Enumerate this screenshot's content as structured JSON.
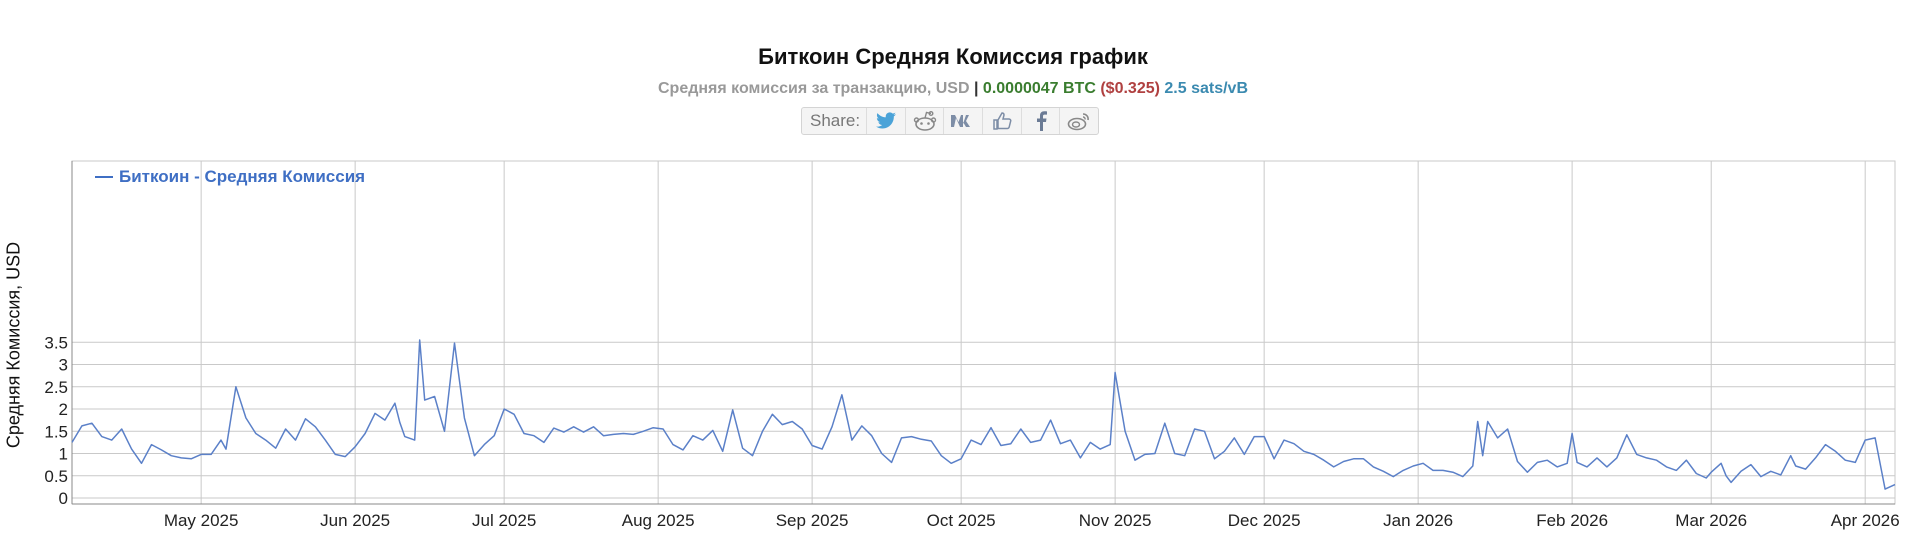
{
  "header": {
    "title": "Биткоин Средняя Комиссия график",
    "subtitle_prefix": "Средняя комиссия за транзакцию, USD",
    "subtitle_sep": "|",
    "btc_value": "0.0000047 BTC",
    "usd_value": "($0.325)",
    "sats_value": "2.5 sats/vB"
  },
  "share": {
    "label": "Share:",
    "icons": [
      "twitter-icon",
      "reddit-icon",
      "vk-icon",
      "like-icon",
      "facebook-icon",
      "weibo-icon"
    ]
  },
  "colors": {
    "line": "#5b80c8",
    "legend": "#3f6fc4",
    "grid": "#c9c9c9",
    "axis": "#888888"
  },
  "chart_data": {
    "type": "line",
    "ylabel": "Средняя Комиссия, USD",
    "ylim": [
      0,
      3.5
    ],
    "yticks": [
      "0",
      "0.5",
      "1",
      "1.5",
      "2",
      "2.5",
      "3",
      "3.5"
    ],
    "x_range": [
      "2025-04-05",
      "2026-04-07"
    ],
    "xticks": [
      {
        "label": "May 2025",
        "date": "2025-05-01"
      },
      {
        "label": "Jun 2025",
        "date": "2025-06-01"
      },
      {
        "label": "Jul 2025",
        "date": "2025-07-01"
      },
      {
        "label": "Aug 2025",
        "date": "2025-08-01"
      },
      {
        "label": "Sep 2025",
        "date": "2025-09-01"
      },
      {
        "label": "Oct 2025",
        "date": "2025-10-01"
      },
      {
        "label": "Nov 2025",
        "date": "2025-11-01"
      },
      {
        "label": "Dec 2025",
        "date": "2025-12-01"
      },
      {
        "label": "Jan 2026",
        "date": "2026-01-01"
      },
      {
        "label": "Feb 2026",
        "date": "2026-02-01"
      },
      {
        "label": "Mar 2026",
        "date": "2026-03-01"
      },
      {
        "label": "Apr 2026",
        "date": "2026-04-01"
      }
    ],
    "grid": true,
    "legend_position": "top-left",
    "series": [
      {
        "name": "Биткоин - Средняя Комиссия",
        "points": [
          [
            "2025-04-05",
            1.25
          ],
          [
            "2025-04-07",
            1.62
          ],
          [
            "2025-04-09",
            1.68
          ],
          [
            "2025-04-11",
            1.38
          ],
          [
            "2025-04-13",
            1.3
          ],
          [
            "2025-04-15",
            1.55
          ],
          [
            "2025-04-17",
            1.1
          ],
          [
            "2025-04-19",
            0.78
          ],
          [
            "2025-04-21",
            1.2
          ],
          [
            "2025-04-23",
            1.08
          ],
          [
            "2025-04-25",
            0.95
          ],
          [
            "2025-04-27",
            0.9
          ],
          [
            "2025-04-29",
            0.88
          ],
          [
            "2025-05-01",
            0.98
          ],
          [
            "2025-05-03",
            0.98
          ],
          [
            "2025-05-05",
            1.3
          ],
          [
            "2025-05-06",
            1.1
          ],
          [
            "2025-05-08",
            2.5
          ],
          [
            "2025-05-10",
            1.8
          ],
          [
            "2025-05-12",
            1.45
          ],
          [
            "2025-05-14",
            1.3
          ],
          [
            "2025-05-16",
            1.12
          ],
          [
            "2025-05-18",
            1.55
          ],
          [
            "2025-05-20",
            1.3
          ],
          [
            "2025-05-22",
            1.78
          ],
          [
            "2025-05-24",
            1.6
          ],
          [
            "2025-05-26",
            1.3
          ],
          [
            "2025-05-28",
            0.98
          ],
          [
            "2025-05-30",
            0.93
          ],
          [
            "2025-06-01",
            1.15
          ],
          [
            "2025-06-03",
            1.45
          ],
          [
            "2025-06-05",
            1.9
          ],
          [
            "2025-06-07",
            1.75
          ],
          [
            "2025-06-09",
            2.13
          ],
          [
            "2025-06-10",
            1.7
          ],
          [
            "2025-06-11",
            1.38
          ],
          [
            "2025-06-13",
            1.3
          ],
          [
            "2025-06-14",
            3.55
          ],
          [
            "2025-06-15",
            2.2
          ],
          [
            "2025-06-17",
            2.28
          ],
          [
            "2025-06-19",
            1.5
          ],
          [
            "2025-06-21",
            3.48
          ],
          [
            "2025-06-23",
            1.8
          ],
          [
            "2025-06-25",
            0.95
          ],
          [
            "2025-06-27",
            1.2
          ],
          [
            "2025-06-29",
            1.4
          ],
          [
            "2025-07-01",
            2.0
          ],
          [
            "2025-07-03",
            1.88
          ],
          [
            "2025-07-05",
            1.45
          ],
          [
            "2025-07-07",
            1.4
          ],
          [
            "2025-07-09",
            1.25
          ],
          [
            "2025-07-11",
            1.57
          ],
          [
            "2025-07-13",
            1.48
          ],
          [
            "2025-07-15",
            1.6
          ],
          [
            "2025-07-17",
            1.48
          ],
          [
            "2025-07-19",
            1.6
          ],
          [
            "2025-07-21",
            1.4
          ],
          [
            "2025-07-23",
            1.43
          ],
          [
            "2025-07-25",
            1.45
          ],
          [
            "2025-07-27",
            1.43
          ],
          [
            "2025-07-29",
            1.5
          ],
          [
            "2025-07-31",
            1.58
          ],
          [
            "2025-08-02",
            1.55
          ],
          [
            "2025-08-04",
            1.2
          ],
          [
            "2025-08-06",
            1.08
          ],
          [
            "2025-08-08",
            1.4
          ],
          [
            "2025-08-10",
            1.3
          ],
          [
            "2025-08-12",
            1.52
          ],
          [
            "2025-08-14",
            1.05
          ],
          [
            "2025-08-16",
            1.98
          ],
          [
            "2025-08-18",
            1.12
          ],
          [
            "2025-08-20",
            0.95
          ],
          [
            "2025-08-22",
            1.5
          ],
          [
            "2025-08-24",
            1.88
          ],
          [
            "2025-08-26",
            1.65
          ],
          [
            "2025-08-28",
            1.72
          ],
          [
            "2025-08-30",
            1.55
          ],
          [
            "2025-09-01",
            1.18
          ],
          [
            "2025-09-03",
            1.1
          ],
          [
            "2025-09-05",
            1.6
          ],
          [
            "2025-09-07",
            2.32
          ],
          [
            "2025-09-09",
            1.3
          ],
          [
            "2025-09-11",
            1.62
          ],
          [
            "2025-09-13",
            1.4
          ],
          [
            "2025-09-15",
            1.0
          ],
          [
            "2025-09-17",
            0.8
          ],
          [
            "2025-09-19",
            1.35
          ],
          [
            "2025-09-21",
            1.38
          ],
          [
            "2025-09-23",
            1.32
          ],
          [
            "2025-09-25",
            1.28
          ],
          [
            "2025-09-27",
            0.95
          ],
          [
            "2025-09-29",
            0.78
          ],
          [
            "2025-10-01",
            0.88
          ],
          [
            "2025-10-03",
            1.3
          ],
          [
            "2025-10-05",
            1.2
          ],
          [
            "2025-10-07",
            1.58
          ],
          [
            "2025-10-09",
            1.18
          ],
          [
            "2025-10-11",
            1.22
          ],
          [
            "2025-10-13",
            1.55
          ],
          [
            "2025-10-15",
            1.25
          ],
          [
            "2025-10-17",
            1.3
          ],
          [
            "2025-10-19",
            1.75
          ],
          [
            "2025-10-21",
            1.22
          ],
          [
            "2025-10-23",
            1.3
          ],
          [
            "2025-10-25",
            0.9
          ],
          [
            "2025-10-27",
            1.25
          ],
          [
            "2025-10-29",
            1.1
          ],
          [
            "2025-10-31",
            1.2
          ],
          [
            "2025-11-01",
            2.82
          ],
          [
            "2025-11-03",
            1.5
          ],
          [
            "2025-11-05",
            0.85
          ],
          [
            "2025-11-07",
            0.98
          ],
          [
            "2025-11-09",
            1.0
          ],
          [
            "2025-11-11",
            1.68
          ],
          [
            "2025-11-13",
            1.0
          ],
          [
            "2025-11-15",
            0.95
          ],
          [
            "2025-11-17",
            1.55
          ],
          [
            "2025-11-19",
            1.5
          ],
          [
            "2025-11-21",
            0.88
          ],
          [
            "2025-11-23",
            1.05
          ],
          [
            "2025-11-25",
            1.35
          ],
          [
            "2025-11-27",
            0.98
          ],
          [
            "2025-11-29",
            1.38
          ],
          [
            "2025-12-01",
            1.38
          ],
          [
            "2025-12-03",
            0.88
          ],
          [
            "2025-12-05",
            1.3
          ],
          [
            "2025-12-07",
            1.22
          ],
          [
            "2025-12-09",
            1.05
          ],
          [
            "2025-12-11",
            0.98
          ],
          [
            "2025-12-13",
            0.85
          ],
          [
            "2025-12-15",
            0.7
          ],
          [
            "2025-12-17",
            0.82
          ],
          [
            "2025-12-19",
            0.88
          ],
          [
            "2025-12-21",
            0.88
          ],
          [
            "2025-12-23",
            0.7
          ],
          [
            "2025-12-25",
            0.6
          ],
          [
            "2025-12-27",
            0.48
          ],
          [
            "2025-12-29",
            0.62
          ],
          [
            "2025-12-31",
            0.72
          ],
          [
            "2026-01-02",
            0.78
          ],
          [
            "2026-01-04",
            0.62
          ],
          [
            "2026-01-06",
            0.62
          ],
          [
            "2026-01-08",
            0.58
          ],
          [
            "2026-01-10",
            0.48
          ],
          [
            "2026-01-12",
            0.72
          ],
          [
            "2026-01-13",
            1.72
          ],
          [
            "2026-01-14",
            0.95
          ],
          [
            "2026-01-15",
            1.72
          ],
          [
            "2026-01-17",
            1.35
          ],
          [
            "2026-01-19",
            1.55
          ],
          [
            "2026-01-21",
            0.82
          ],
          [
            "2026-01-23",
            0.58
          ],
          [
            "2026-01-25",
            0.8
          ],
          [
            "2026-01-27",
            0.85
          ],
          [
            "2026-01-29",
            0.7
          ],
          [
            "2026-01-31",
            0.78
          ],
          [
            "2026-02-01",
            1.45
          ],
          [
            "2026-02-02",
            0.8
          ],
          [
            "2026-02-04",
            0.7
          ],
          [
            "2026-02-06",
            0.9
          ],
          [
            "2026-02-08",
            0.7
          ],
          [
            "2026-02-10",
            0.9
          ],
          [
            "2026-02-12",
            1.42
          ],
          [
            "2026-02-14",
            0.98
          ],
          [
            "2026-02-16",
            0.9
          ],
          [
            "2026-02-18",
            0.85
          ],
          [
            "2026-02-20",
            0.7
          ],
          [
            "2026-02-22",
            0.62
          ],
          [
            "2026-02-24",
            0.85
          ],
          [
            "2026-02-26",
            0.55
          ],
          [
            "2026-02-28",
            0.45
          ],
          [
            "2026-03-01",
            0.58
          ],
          [
            "2026-03-03",
            0.78
          ],
          [
            "2026-03-04",
            0.5
          ],
          [
            "2026-03-05",
            0.35
          ],
          [
            "2026-03-07",
            0.6
          ],
          [
            "2026-03-09",
            0.75
          ],
          [
            "2026-03-11",
            0.48
          ],
          [
            "2026-03-13",
            0.6
          ],
          [
            "2026-03-15",
            0.52
          ],
          [
            "2026-03-17",
            0.95
          ],
          [
            "2026-03-18",
            0.72
          ],
          [
            "2026-03-20",
            0.65
          ],
          [
            "2026-03-22",
            0.9
          ],
          [
            "2026-03-24",
            1.2
          ],
          [
            "2026-03-26",
            1.05
          ],
          [
            "2026-03-28",
            0.85
          ],
          [
            "2026-03-30",
            0.8
          ],
          [
            "2026-04-01",
            1.3
          ],
          [
            "2026-04-03",
            1.35
          ],
          [
            "2026-04-05",
            0.2
          ],
          [
            "2026-04-07",
            0.3
          ]
        ]
      }
    ]
  }
}
